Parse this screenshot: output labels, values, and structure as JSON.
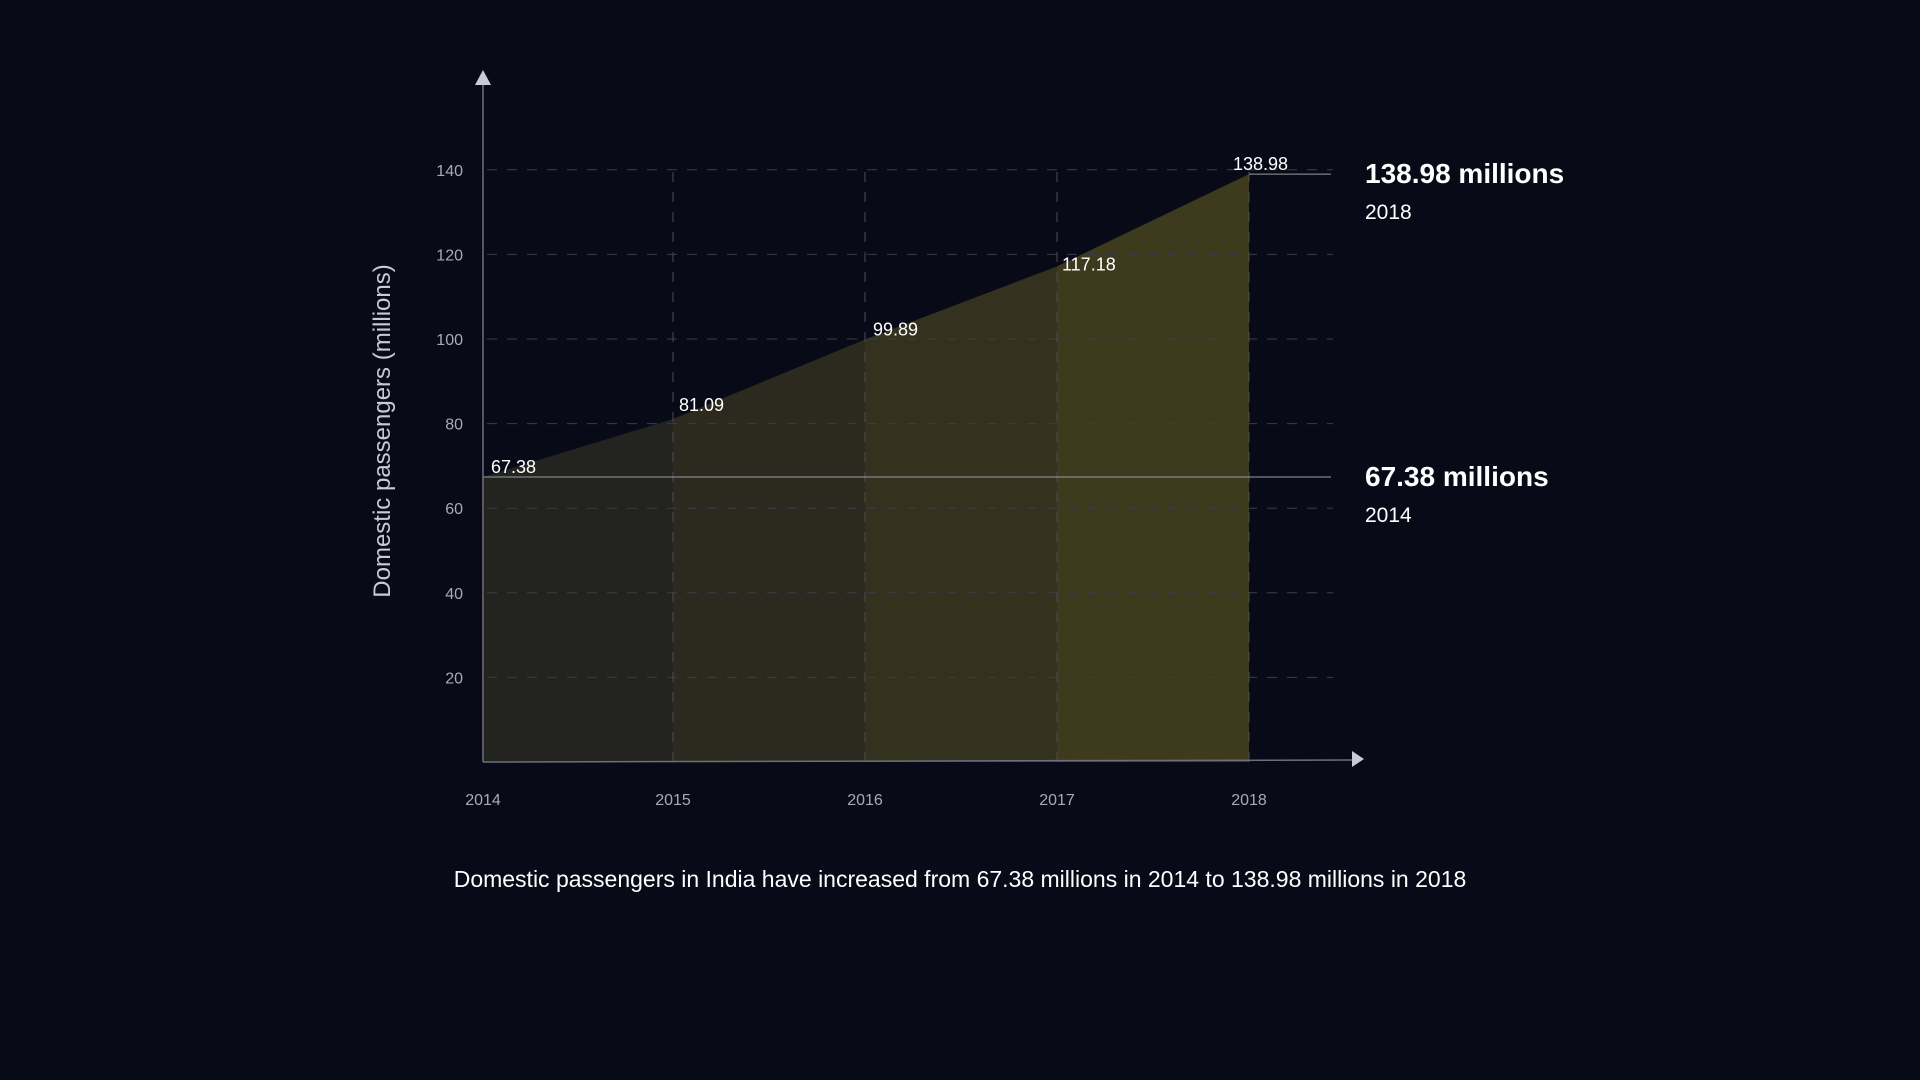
{
  "chart_data": {
    "type": "area",
    "categories": [
      "2014",
      "2015",
      "2016",
      "2017",
      "2018"
    ],
    "values": [
      67.38,
      81.09,
      99.89,
      117.18,
      138.98
    ],
    "value_labels": [
      "67.38",
      "81.09",
      "99.89",
      "117.18",
      "138.98"
    ],
    "ylabel": "Domestic passengers (millions)",
    "xlabel": "",
    "yticks": [
      20,
      40,
      60,
      80,
      100,
      120,
      140
    ],
    "ylim": [
      0,
      160
    ],
    "grid": true,
    "fill_colors": [
      "#1b1b1c",
      "#232320",
      "#2c2a1f",
      "#35311f",
      "#3d3a1e"
    ],
    "callouts": [
      {
        "value_text": "138.98 millions",
        "year": "2018",
        "value": 138.98
      },
      {
        "value_text": "67.38 millions",
        "year": "2014",
        "value": 67.38
      }
    ]
  },
  "caption": "Domestic passengers in India have increased from 67.38 millions in 2014 to 138.98 millions in 2018"
}
